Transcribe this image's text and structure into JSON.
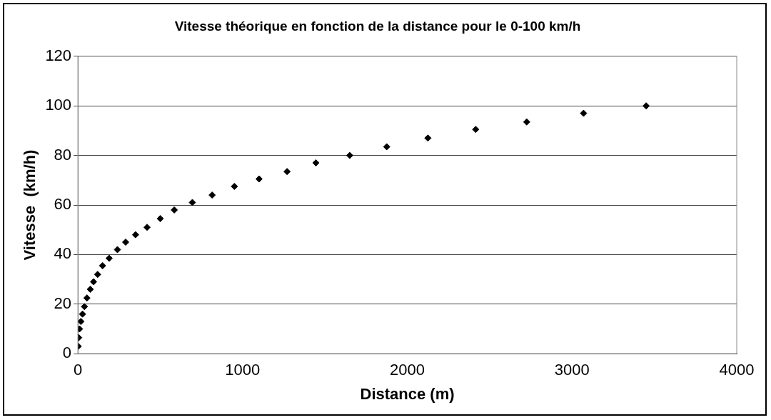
{
  "chart_data": {
    "type": "scatter",
    "title": "Vitesse théorique en fonction de la distance pour le 0-100 km/h",
    "xlabel": "Distance (m)",
    "ylabel": "Vitesse  (km/h)",
    "series": [
      {
        "color": "#000000",
        "x": [
          2,
          5,
          10,
          18,
          28,
          40,
          55,
          75,
          95,
          120,
          150,
          190,
          240,
          290,
          350,
          420,
          500,
          585,
          695,
          815,
          950,
          1100,
          1270,
          1445,
          1650,
          1875,
          2125,
          2415,
          2725,
          3070,
          3450
        ],
        "values": [
          3,
          6.5,
          10,
          13,
          16,
          19,
          22.5,
          26,
          29,
          32,
          35.5,
          38.5,
          42,
          45,
          48,
          51,
          54.5,
          58,
          61,
          64,
          67.5,
          70.5,
          73.5,
          77,
          80,
          83.5,
          87,
          90.5,
          93.5,
          97,
          100
        ]
      }
    ],
    "marker": "diamond",
    "xlim": [
      0,
      4000
    ],
    "xticks": [
      0,
      1000,
      2000,
      3000,
      4000
    ],
    "ylim": [
      0,
      120
    ],
    "yticks": [
      0,
      20,
      40,
      60,
      80,
      100,
      120
    ],
    "grid": "y",
    "legend": false
  }
}
